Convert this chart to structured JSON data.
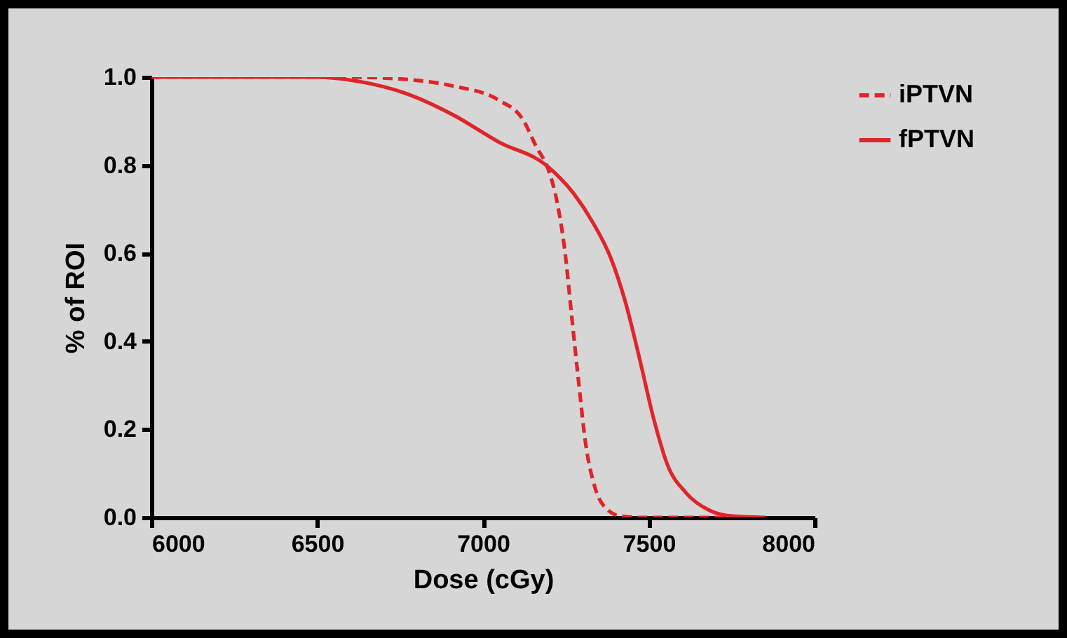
{
  "chart_data": {
    "type": "line",
    "xlabel": "Dose (cGy)",
    "ylabel": "% of ROI",
    "xlim": [
      6000,
      8000
    ],
    "xticks": [
      6000,
      6500,
      7000,
      7500,
      8000
    ],
    "ylim": [
      0,
      1
    ],
    "yticks": [
      {
        "value": 0,
        "label": "0.0"
      },
      {
        "value": 0.2,
        "label": "0.2"
      },
      {
        "value": 0.4,
        "label": "0.4"
      },
      {
        "value": 0.6,
        "label": "0.6"
      },
      {
        "value": 0.8,
        "label": "0.8"
      },
      {
        "value": 1,
        "label": "1.0"
      }
    ],
    "legend": "top right",
    "grid": false,
    "series": [
      {
        "name": "iPTVN",
        "color": "#e0252a",
        "line_style": "dashed",
        "x": [
          6000,
          6600,
          6767,
          6908,
          7049,
          7119,
          7162,
          7197,
          7225,
          7246,
          7267,
          7288,
          7309,
          7338,
          7373,
          7415,
          7471,
          7830
        ],
        "values": [
          1,
          1,
          0.995,
          0.98,
          0.947,
          0.905,
          0.84,
          0.79,
          0.71,
          0.61,
          0.46,
          0.31,
          0.17,
          0.067,
          0.019,
          0.003,
          0,
          0
        ]
      },
      {
        "name": "fPTVN",
        "color": "#e0252a",
        "line_style": "solid",
        "x": [
          6005,
          6486,
          6627,
          6767,
          6908,
          7049,
          7190,
          7274,
          7331,
          7387,
          7429,
          7471,
          7514,
          7556,
          7612,
          7683,
          7753,
          7851
        ],
        "values": [
          1,
          1,
          0.99,
          0.963,
          0.915,
          0.852,
          0.8,
          0.735,
          0.67,
          0.586,
          0.49,
          0.364,
          0.226,
          0.12,
          0.056,
          0.016,
          0.003,
          0
        ]
      }
    ]
  }
}
